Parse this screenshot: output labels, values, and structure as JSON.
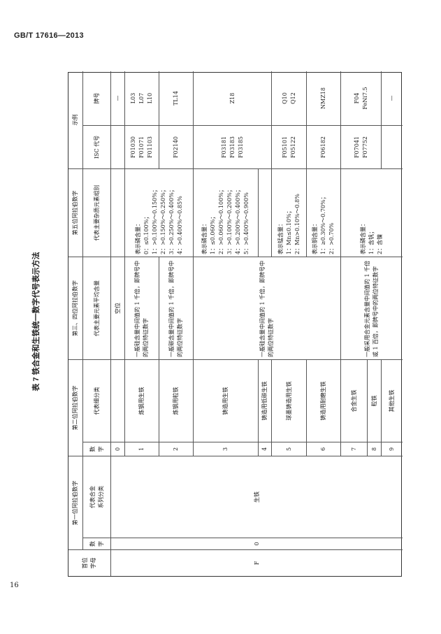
{
  "page_header": "GB/T 17616—2013",
  "page_number": "16",
  "table_title": "表 7  铁合金和生铁统一数字代号表示方法",
  "headers": {
    "first_letter": "首位\n字母",
    "first_digit": "第一位阿拉伯数字",
    "first_num": "数\n字",
    "first_desc": "代表合金\n系列分类",
    "second_digit": "第二位阿拉伯数字",
    "second_num": "数\n字",
    "second_desc": "代表细分类",
    "third_fourth": "第三、四位阿拉伯数字",
    "third_fourth_desc": "代表主要元素平均含量",
    "fifth": "第五位阿拉伯数字",
    "fifth_desc": "代表主要杂质元素组别",
    "example": "示例",
    "isc": "ISC 代号",
    "grade": "牌号"
  },
  "body": {
    "letter": "F",
    "first_num": "0",
    "first_desc": "生铁",
    "rows": [
      {
        "num": "0",
        "name": ""
      },
      {
        "num": "1",
        "name": "炼钢用生铁"
      },
      {
        "num": "2",
        "name": "炼钢用粒铁"
      },
      {
        "num": "3",
        "name": "铸造用生铁"
      },
      {
        "num": "4",
        "name": "铸造用低碳生铁"
      },
      {
        "num": "5",
        "name": "球墨铸造用生铁"
      },
      {
        "num": "6",
        "name": "铸造用耐磨生铁"
      },
      {
        "num": "7",
        "name": "合金生铁"
      },
      {
        "num": "8",
        "name": "粒铁"
      },
      {
        "num": "9",
        "name": "其他生铁"
      }
    ],
    "main_element": {
      "r0": "空位",
      "r1": "一般硅含量中间值的 1 千倍，即牌号中的两位特征数字",
      "r2": "一般碳含量中间值的 1 千倍，即牌号中的两位特征数字",
      "r3_6": "一般硅含量中间值的 1 千倍，即牌号中的两位特征数字",
      "r7_9": "一般采用合金元素含量中间值的 1 千倍或 1 百倍，即牌号中的两位特征数字"
    },
    "impurity": {
      "r1_2": "表示磷含量：\n0：≤0.100%；\n1：>0.100%～0.150%；\n2：>0.150%～0.250%；\n3：>0.250%～0.400%；\n4：>0.400%～0.85%",
      "r3": "表示磷含量：\n1：≤0.060%；\n2：>0.060%～0.100%；\n3：>0.100%～0.200%；\n4：>0.200%～0.400%；\n5：>0.400%～0.900%",
      "r5": "表示锰含量：\n1：Mn≤0.10%；\n2：Mn>0.10%～0.8%",
      "r6": "表示铜含量：\n1：≥0.30%～0.70%；\n2：>0.70%",
      "r7_9": "表示磷含量：\n1：含钒；\n2：含镍"
    },
    "examples": {
      "r0_grade": "—",
      "r1_isc": "F01030\nF01071\nF01103",
      "r1_grade": "L03\nL07\nL10",
      "r2_isc": "F02140",
      "r2_grade": "TL14",
      "r3_isc": "F03181\nF03183\nF03185",
      "r3_grade": "Z18",
      "r5_isc": "F05101\nF05122",
      "r5_grade": "Q10\nQ12",
      "r6_isc": "F06182",
      "r6_grade": "NMZ18",
      "r7_isc": "F07041\nF07752",
      "r7_grade": "F04\nFeNi7.5",
      "r8_grade": "—"
    }
  }
}
